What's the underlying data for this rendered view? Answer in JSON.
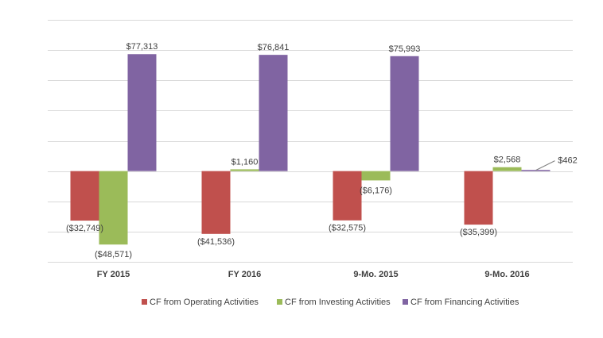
{
  "chart_data": {
    "type": "bar",
    "categories": [
      "FY 2015",
      "FY 2016",
      "9-Mo. 2015",
      "9-Mo. 2016"
    ],
    "series": [
      {
        "name": "CF from Operating Activities",
        "color": "#c0504d",
        "values": [
          -32749,
          -41536,
          -32575,
          -35399
        ],
        "labels": [
          "($32,749)",
          "($41,536)",
          "($32,575)",
          "($35,399)"
        ]
      },
      {
        "name": "CF from Investing Activities",
        "color": "#9bbb59",
        "values": [
          -48571,
          1160,
          -6176,
          2568
        ],
        "labels": [
          "($48,571)",
          "$1,160",
          "($6,176)",
          "$2,568"
        ]
      },
      {
        "name": "CF from Financing Activities",
        "color": "#8064a2",
        "values": [
          77313,
          76841,
          75993,
          462
        ],
        "labels": [
          "$77,313",
          "$76,841",
          "$75,993",
          "$462"
        ]
      }
    ],
    "ylim": [
      -60000,
      100000
    ],
    "grid_step": 20000,
    "grid": true,
    "legend_position": "bottom",
    "title": "",
    "xlabel": "",
    "ylabel": ""
  }
}
